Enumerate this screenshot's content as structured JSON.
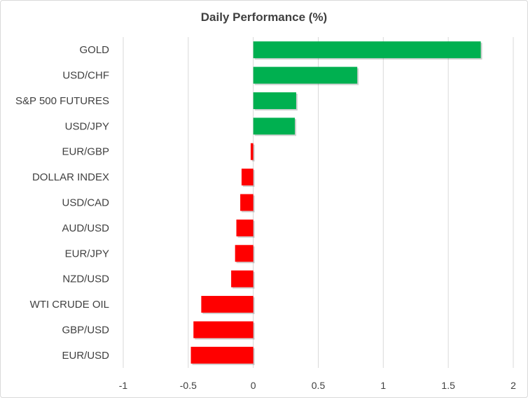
{
  "chart_data": {
    "type": "bar",
    "orientation": "horizontal",
    "title": "Daily Performance (%)",
    "xlabel": "",
    "ylabel": "",
    "xlim": [
      -1,
      2
    ],
    "xticks": [
      -1,
      -0.5,
      0,
      0.5,
      1,
      1.5,
      2
    ],
    "xtick_labels": [
      "-1",
      "-0.5",
      "0",
      "0.5",
      "1",
      "1.5",
      "2"
    ],
    "grid": "vertical",
    "categories": [
      "GOLD",
      "USD/CHF",
      "S&P 500 FUTURES",
      "USD/JPY",
      "EUR/GBP",
      "DOLLAR INDEX",
      "USD/CAD",
      "AUD/USD",
      "EUR/JPY",
      "NZD/USD",
      "WTI CRUDE OIL",
      "GBP/USD",
      "EUR/USD"
    ],
    "values": [
      1.75,
      0.8,
      0.33,
      0.32,
      -0.02,
      -0.09,
      -0.1,
      -0.13,
      -0.14,
      -0.17,
      -0.4,
      -0.46,
      -0.48
    ],
    "colors": {
      "positive": "#00b050",
      "negative": "#ff0000",
      "grid": "#d9d9d9",
      "text": "#404040"
    }
  }
}
